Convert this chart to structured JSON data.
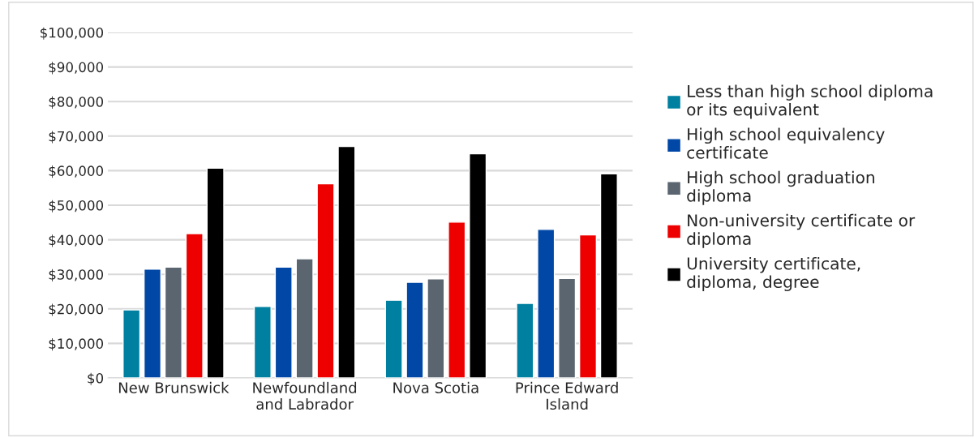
{
  "chart_data": {
    "type": "bar",
    "categories": [
      "New Brunswick",
      "Newfoundland and Labrador",
      "Nova Scotia",
      "Prince Edward Island"
    ],
    "series": [
      {
        "name": "Less than high school diploma or its equivalent",
        "color": "#0080a0",
        "values": [
          19700,
          20700,
          22500,
          21600
        ]
      },
      {
        "name": "High school equivalency certificate",
        "color": "#0047a6",
        "values": [
          31500,
          32100,
          27700,
          43000
        ]
      },
      {
        "name": "High school graduation diploma",
        "color": "#5a6570",
        "values": [
          32100,
          34500,
          28700,
          28800
        ]
      },
      {
        "name": "Non-university certificate or diploma",
        "color": "#ee0000",
        "values": [
          41800,
          56200,
          45100,
          41400
        ]
      },
      {
        "name": "University certificate, diploma, degree",
        "color": "#000000",
        "values": [
          60700,
          67000,
          64900,
          59100
        ]
      }
    ],
    "ylim": [
      0,
      100000
    ],
    "yticks": [
      {
        "value": 0,
        "label": "$0"
      },
      {
        "value": 10000,
        "label": "$10,000"
      },
      {
        "value": 20000,
        "label": "$20,000"
      },
      {
        "value": 30000,
        "label": "$30,000"
      },
      {
        "value": 40000,
        "label": "$40,000"
      },
      {
        "value": 50000,
        "label": "$50,000"
      },
      {
        "value": 60000,
        "label": "$60,000"
      },
      {
        "value": 70000,
        "label": "$70,000"
      },
      {
        "value": 80000,
        "label": "$80,000"
      },
      {
        "value": 90000,
        "label": "$90,000"
      },
      {
        "value": 100000,
        "label": "$100,000"
      }
    ],
    "grid": "y",
    "legend": "right"
  }
}
